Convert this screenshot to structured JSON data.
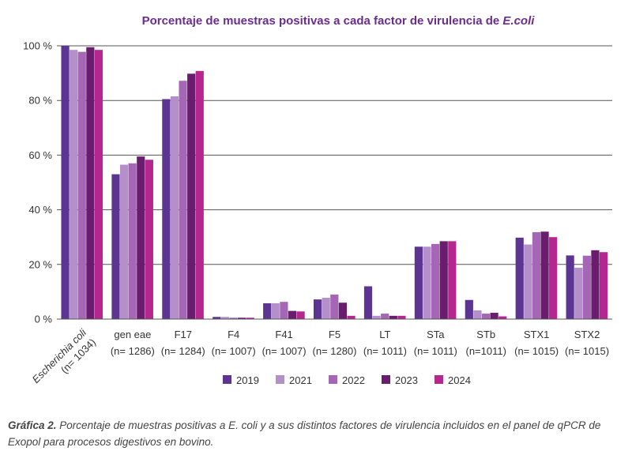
{
  "chart_data": {
    "type": "bar",
    "title_prefix": "Porcentaje de muestras positivas a cada factor de virulencia de ",
    "title_italic": "E.coli",
    "ylim": [
      0,
      100
    ],
    "yticks": [
      0,
      20,
      40,
      60,
      80,
      100
    ],
    "ytick_labels": [
      "0 %",
      "20 %",
      "40 %",
      "60 %",
      "80 %",
      "100 %"
    ],
    "grid": true,
    "legend_position": "bottom",
    "categories": [
      {
        "name": "Escherichia coli",
        "n": "(n= 1034)"
      },
      {
        "name": "gen eae",
        "n": "(n= 1286)"
      },
      {
        "name": "F17",
        "n": "(n= 1284)"
      },
      {
        "name": "F4",
        "n": "(n= 1007)"
      },
      {
        "name": "F41",
        "n": "(n= 1007)"
      },
      {
        "name": "F5",
        "n": "(n= 1280)"
      },
      {
        "name": "LT",
        "n": "(n= 1011)"
      },
      {
        "name": "STa",
        "n": "(n= 1011)"
      },
      {
        "name": "STb",
        "n": "(n=1011)"
      },
      {
        "name": "STX1",
        "n": "(n= 1015)"
      },
      {
        "name": "STX2",
        "n": "(n= 1015)"
      }
    ],
    "series": [
      {
        "name": "2019",
        "color": "#5c3592",
        "values": [
          100,
          53,
          80.5,
          0.8,
          5.8,
          7.2,
          12,
          26.5,
          7,
          29.8,
          23.3
        ]
      },
      {
        "name": "2021",
        "color": "#b48fc9",
        "values": [
          98.5,
          56.5,
          81.5,
          0.8,
          5.8,
          7.8,
          1.2,
          26.5,
          3.2,
          27.3,
          18.8
        ]
      },
      {
        "name": "2022",
        "color": "#a566b5",
        "values": [
          97.8,
          57,
          87.2,
          0.5,
          6.3,
          9,
          2,
          27.5,
          2,
          31.8,
          23.2
        ]
      },
      {
        "name": "2023",
        "color": "#6a1d6e",
        "values": [
          99.5,
          59.5,
          89.8,
          0.5,
          3,
          6,
          1.2,
          28.5,
          2.3,
          32,
          25.2
        ]
      },
      {
        "name": "2024",
        "color": "#b5278f",
        "values": [
          98.5,
          58.3,
          90.8,
          0.5,
          2.8,
          1.2,
          1.2,
          28.5,
          1,
          30,
          24.5
        ]
      }
    ]
  },
  "caption": {
    "bold": "Gráfica 2.",
    "text": " Porcentaje de muestras positivas a E. coli y a sus distintos factores de virulencia incluidos en el panel de qPCR de Exopol para procesos digestivos en bovino."
  }
}
